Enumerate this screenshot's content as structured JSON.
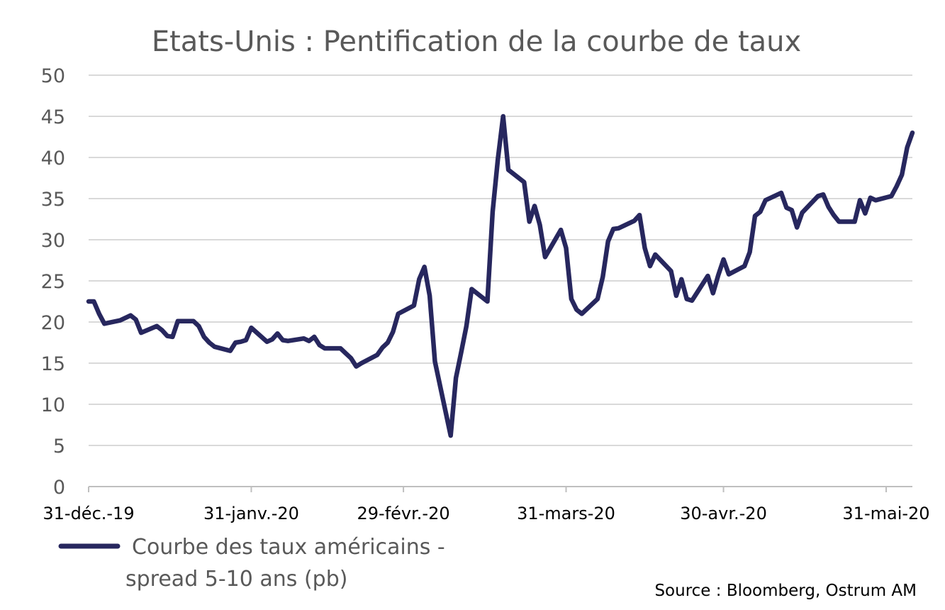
{
  "chart_data": {
    "type": "line",
    "title": "Etats-Unis : Pentification de la courbe de taux",
    "source": "Source : Bloomberg, Ostrum AM",
    "legend_position": "bottom-left",
    "grid": true,
    "xlabel": "",
    "ylabel": "",
    "ylim": [
      0,
      50
    ],
    "y_ticks": [
      "0",
      "5",
      "10",
      "15",
      "20",
      "25",
      "30",
      "35",
      "40",
      "45",
      "50"
    ],
    "x_ticks": [
      {
        "date": "2019-12-31",
        "label": "31-déc.-19"
      },
      {
        "date": "2020-01-31",
        "label": "31-janv.-20"
      },
      {
        "date": "2020-02-29",
        "label": "29-févr.-20"
      },
      {
        "date": "2020-03-31",
        "label": "31-mars-20"
      },
      {
        "date": "2020-04-30",
        "label": "30-avr.-20"
      },
      {
        "date": "2020-05-31",
        "label": "31-mai-20"
      }
    ],
    "series": [
      {
        "name_lines": [
          "Courbe des taux américains -",
          "spread 5-10 ans (pb)"
        ],
        "color": "#27275e",
        "x": [
          "2019-12-31",
          "2020-01-01",
          "2020-01-02",
          "2020-01-03",
          "2020-01-06",
          "2020-01-07",
          "2020-01-08",
          "2020-01-09",
          "2020-01-10",
          "2020-01-13",
          "2020-01-14",
          "2020-01-15",
          "2020-01-16",
          "2020-01-17",
          "2020-01-20",
          "2020-01-21",
          "2020-01-22",
          "2020-01-23",
          "2020-01-24",
          "2020-01-27",
          "2020-01-28",
          "2020-01-29",
          "2020-01-30",
          "2020-01-31",
          "2020-02-03",
          "2020-02-04",
          "2020-02-05",
          "2020-02-06",
          "2020-02-07",
          "2020-02-10",
          "2020-02-11",
          "2020-02-12",
          "2020-02-13",
          "2020-02-14",
          "2020-02-17",
          "2020-02-18",
          "2020-02-19",
          "2020-02-20",
          "2020-02-21",
          "2020-02-24",
          "2020-02-25",
          "2020-02-26",
          "2020-02-27",
          "2020-02-28",
          "2020-03-02",
          "2020-03-03",
          "2020-03-04",
          "2020-03-05",
          "2020-03-06",
          "2020-03-09",
          "2020-03-10",
          "2020-03-11",
          "2020-03-12",
          "2020-03-13",
          "2020-03-16",
          "2020-03-17",
          "2020-03-18",
          "2020-03-19",
          "2020-03-20",
          "2020-03-23",
          "2020-03-24",
          "2020-03-25",
          "2020-03-26",
          "2020-03-27",
          "2020-03-30",
          "2020-03-31",
          "2020-04-01",
          "2020-04-02",
          "2020-04-03",
          "2020-04-06",
          "2020-04-07",
          "2020-04-08",
          "2020-04-09",
          "2020-04-10",
          "2020-04-13",
          "2020-04-14",
          "2020-04-15",
          "2020-04-16",
          "2020-04-17",
          "2020-04-20",
          "2020-04-21",
          "2020-04-22",
          "2020-04-23",
          "2020-04-24",
          "2020-04-27",
          "2020-04-28",
          "2020-04-29",
          "2020-04-30",
          "2020-05-01",
          "2020-05-04",
          "2020-05-05",
          "2020-05-06",
          "2020-05-07",
          "2020-05-08",
          "2020-05-11",
          "2020-05-12",
          "2020-05-13",
          "2020-05-14",
          "2020-05-15",
          "2020-05-18",
          "2020-05-19",
          "2020-05-20",
          "2020-05-21",
          "2020-05-22",
          "2020-05-25",
          "2020-05-26",
          "2020-05-27",
          "2020-05-28",
          "2020-05-29",
          "2020-06-01",
          "2020-06-02",
          "2020-06-03",
          "2020-06-04",
          "2020-06-05"
        ],
        "values": [
          22.5,
          22.5,
          21.0,
          19.8,
          20.2,
          20.5,
          20.8,
          20.3,
          18.7,
          19.5,
          19.0,
          18.3,
          18.2,
          20.1,
          20.1,
          19.5,
          18.2,
          17.5,
          17.0,
          16.5,
          17.5,
          17.6,
          17.8,
          19.3,
          17.6,
          17.9,
          18.6,
          17.8,
          17.7,
          18.0,
          17.7,
          18.2,
          17.2,
          16.8,
          16.8,
          16.2,
          15.6,
          14.6,
          15.0,
          16.0,
          16.9,
          17.5,
          18.8,
          21.0,
          22.0,
          25.2,
          26.7,
          23.2,
          15.2,
          6.2,
          13.2,
          16.3,
          19.5,
          24.0,
          22.5,
          33.4,
          39.8,
          45.0,
          38.5,
          37.0,
          32.2,
          34.1,
          31.8,
          27.9,
          31.2,
          29.0,
          22.8,
          21.5,
          21.0,
          22.8,
          25.5,
          29.8,
          31.3,
          31.4,
          32.3,
          33.0,
          29.0,
          26.8,
          28.2,
          26.2,
          23.2,
          25.2,
          22.8,
          22.6,
          25.6,
          23.5,
          25.7,
          27.6,
          25.8,
          26.8,
          28.5,
          32.9,
          33.4,
          34.8,
          35.7,
          33.9,
          33.6,
          31.5,
          33.3,
          35.3,
          35.5,
          34.0,
          33.0,
          32.2,
          32.2,
          34.8,
          33.2,
          35.1,
          34.8,
          35.3,
          36.5,
          37.9,
          41.2,
          43.0
        ]
      }
    ]
  }
}
